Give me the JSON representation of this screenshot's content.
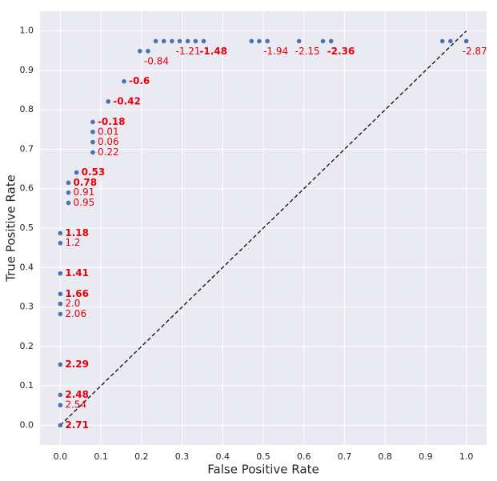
{
  "chart_data": {
    "type": "scatter",
    "x_label": "False Positive Rate",
    "y_label": "True Positive Rate",
    "xlim": [
      -0.05,
      1.05
    ],
    "ylim": [
      -0.05,
      1.05
    ],
    "xticks": [
      {
        "value": 0,
        "label": "0.0"
      },
      0.1,
      0.2,
      0.3,
      0.4,
      0.5,
      0.6,
      0.7,
      0.8,
      0.9,
      {
        "value": 1,
        "label": "1.0"
      }
    ],
    "yticks": [
      {
        "value": 0,
        "label": "0.0"
      },
      0.1,
      0.2,
      0.3,
      0.4,
      0.5,
      0.6,
      0.7,
      0.8,
      0.9,
      {
        "value": 1,
        "label": "1.0"
      }
    ],
    "grid": true,
    "background": "#eaeaf2",
    "label_color": "#e8000b",
    "diagonal": {
      "x": [
        0,
        1
      ],
      "y": [
        0,
        1
      ],
      "color": "#1a1a1a"
    },
    "series": [
      {
        "color": "#4c72b0",
        "x": [
          0,
          0,
          0,
          0,
          0,
          0,
          0,
          0,
          0,
          0,
          0.02,
          0.02,
          0.02,
          0.04,
          0.08,
          0.08,
          0.08,
          0.08,
          0.118,
          0.157,
          0.196,
          0.216,
          0.235,
          0.255,
          0.275,
          0.294,
          0.314,
          0.333,
          0.353,
          0.471,
          0.49,
          0.51,
          0.588,
          0.647,
          0.667,
          0.941,
          0.961,
          1.0
        ],
        "values": [
          0,
          0.051,
          0.077,
          0.154,
          0.282,
          0.308,
          0.333,
          0.385,
          0.462,
          0.487,
          0.564,
          0.59,
          0.615,
          0.641,
          0.692,
          0.718,
          0.744,
          0.769,
          0.821,
          0.872,
          0.949,
          0.949,
          0.974,
          0.974,
          0.974,
          0.974,
          0.974,
          0.974,
          0.974,
          0.974,
          0.974,
          0.974,
          0.974,
          0.974,
          0.974,
          0.974,
          0.974,
          0.974
        ],
        "point_labels": [
          "2.71",
          "2.54",
          "2.48",
          "2.29",
          "2.06",
          "2.0",
          "1.66",
          "1.41",
          "1.2",
          "1.18",
          "0.95",
          "0.91",
          "0.78",
          "0.53",
          "0.22",
          "0.06",
          "0.01",
          "-0.18",
          "-0.42",
          "-0.6",
          null,
          "-0.84",
          null,
          null,
          null,
          "-1.21",
          null,
          null,
          "-1.48",
          null,
          null,
          "-1.94",
          "-2.15",
          null,
          "-2.36",
          null,
          null,
          "-2.87"
        ],
        "bold_labels": [
          true,
          false,
          true,
          true,
          false,
          false,
          true,
          true,
          false,
          true,
          false,
          false,
          true,
          true,
          false,
          false,
          false,
          true,
          true,
          true,
          null,
          false,
          null,
          null,
          null,
          false,
          null,
          null,
          true,
          null,
          null,
          false,
          false,
          null,
          true,
          null,
          null,
          false
        ]
      }
    ]
  }
}
